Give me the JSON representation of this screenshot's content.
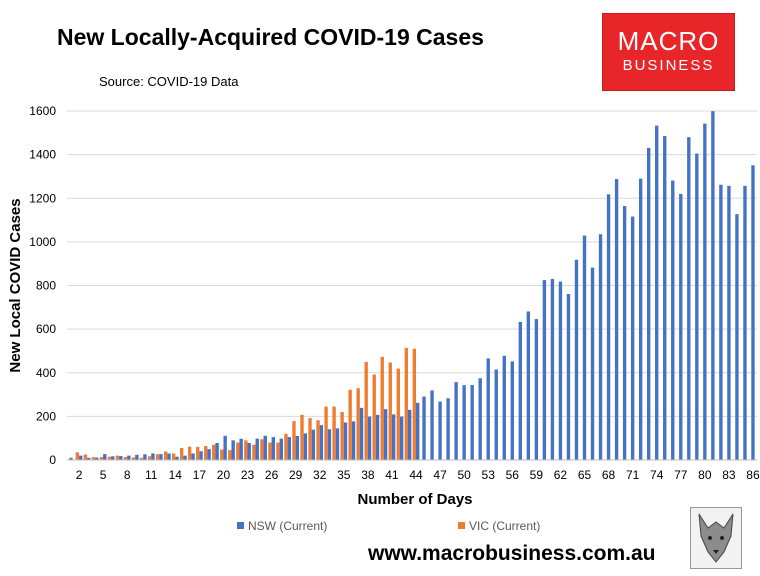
{
  "header": {
    "title": "New Locally-Acquired COVID-19 Cases",
    "source": "Source: COVID-19 Data"
  },
  "logo": {
    "line1": "MACRO",
    "line2": "BUSINESS"
  },
  "footer": {
    "url": "www.macrobusiness.com.au"
  },
  "colors": {
    "nsw": "#4472c4",
    "vic": "#ed7d31",
    "grid": "#d9d9d9",
    "plot_bg": "#ffffff"
  },
  "chart_data": {
    "type": "bar",
    "xlabel": "Number of Days",
    "ylabel": "New Local COVID Cases",
    "ylim": [
      0,
      1600
    ],
    "yticks": [
      0,
      200,
      400,
      600,
      800,
      1000,
      1200,
      1400,
      1600
    ],
    "x": [
      1,
      2,
      3,
      4,
      5,
      6,
      7,
      8,
      9,
      10,
      11,
      12,
      13,
      14,
      15,
      16,
      17,
      18,
      19,
      20,
      21,
      22,
      23,
      24,
      25,
      26,
      27,
      28,
      29,
      30,
      31,
      32,
      33,
      34,
      35,
      36,
      37,
      38,
      39,
      40,
      41,
      42,
      43,
      44,
      45,
      46,
      47,
      48,
      49,
      50,
      51,
      52,
      53,
      54,
      55,
      56,
      57,
      58,
      59,
      60,
      61,
      62,
      63,
      64,
      65,
      66,
      67,
      68,
      69,
      70,
      71,
      72,
      73,
      74,
      75,
      76,
      77,
      78,
      79,
      80,
      81,
      82,
      83,
      84,
      85,
      86
    ],
    "xtick_labels": [
      "2",
      "5",
      "8",
      "11",
      "14",
      "17",
      "20",
      "23",
      "26",
      "29",
      "32",
      "35",
      "38",
      "41",
      "44",
      "47",
      "50",
      "53",
      "56",
      "59",
      "62",
      "65",
      "68",
      "71",
      "74",
      "77",
      "80",
      "83",
      "86"
    ],
    "grid": true,
    "legend_position": "bottom",
    "series": [
      {
        "name": "NSW (Current)",
        "values": [
          10,
          20,
          10,
          11,
          27,
          17,
          18,
          20,
          24,
          26,
          30,
          27,
          30,
          15,
          20,
          30,
          40,
          50,
          78,
          111,
          90,
          97,
          78,
          98,
          111,
          105,
          98,
          105,
          110,
          122,
          139,
          160,
          141,
          145,
          172,
          177,
          239,
          199,
          207,
          233,
          209,
          199,
          230,
          262,
          291,
          319,
          268,
          283,
          357,
          343,
          344,
          375,
          466,
          415,
          478,
          452,
          633,
          681,
          646,
          825,
          830,
          818,
          761,
          918,
          1029,
          882,
          1035,
          1218,
          1288,
          1164,
          1116,
          1290,
          1431,
          1533,
          1485,
          1281,
          1220,
          1480,
          1405,
          1542,
          1599,
          1262,
          1257,
          1127,
          1257,
          1351
        ]
      },
      {
        "name": "VIC (Current)",
        "values": [
          0,
          35,
          25,
          13,
          14,
          15,
          20,
          14,
          12,
          10,
          17,
          26,
          39,
          30,
          55,
          61,
          60,
          64,
          70,
          48,
          45,
          80,
          90,
          70,
          95,
          80,
          80,
          120,
          178,
          207,
          192,
          182,
          245,
          245,
          220,
          322,
          329,
          450,
          392,
          473,
          447,
          419,
          514,
          510,
          0,
          0,
          0,
          0,
          0,
          0,
          0,
          0,
          0,
          0,
          0,
          0,
          0,
          0,
          0,
          0,
          0,
          0,
          0,
          0,
          0,
          0,
          0,
          0,
          0,
          0,
          0,
          0,
          0,
          0,
          0,
          0,
          0,
          0,
          0,
          0,
          0,
          0,
          0,
          0,
          0,
          0
        ]
      }
    ]
  }
}
